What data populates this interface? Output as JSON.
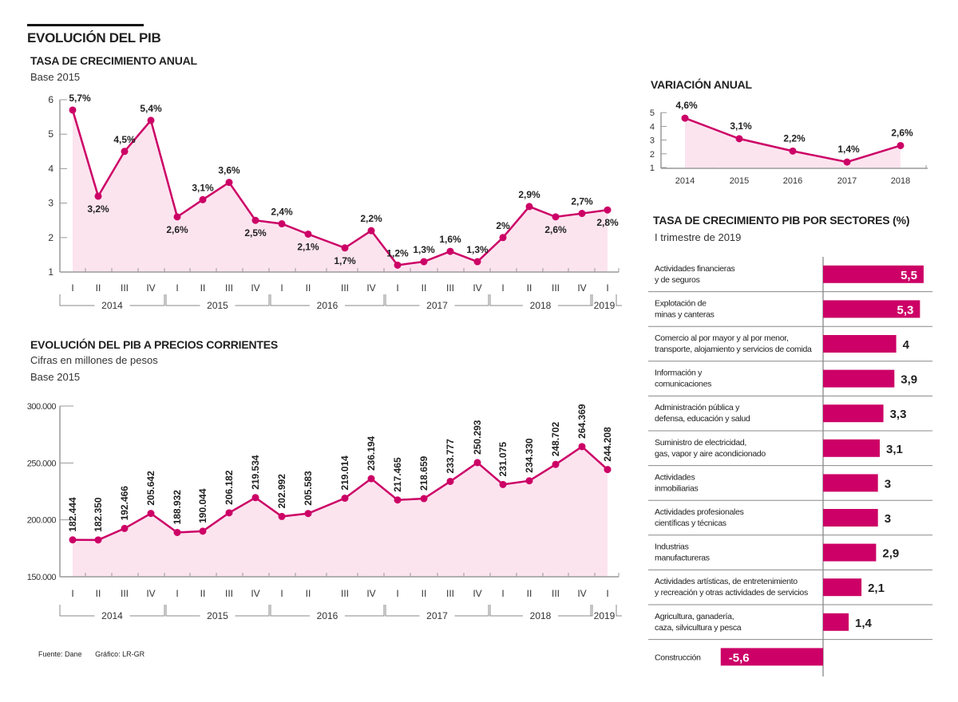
{
  "header": {
    "title": "EVOLUCIÓN DEL PIB"
  },
  "footer": {
    "source": "Fuente: Dane",
    "credit": "Gráfico: LR-GR"
  },
  "colors": {
    "accent": "#cc0066",
    "fill": "#fce4ef",
    "axis": "#888888",
    "text": "#222222"
  },
  "chart_data": [
    {
      "id": "growth",
      "type": "area",
      "title": "TASA DE CRECIMIENTO ANUAL",
      "subtitle": "Base 2015",
      "ylim": [
        1,
        6
      ],
      "yticks": [
        "1",
        "2",
        "3",
        "4",
        "5",
        "6"
      ],
      "categories": [
        "I",
        "II",
        "III",
        "IV",
        "I",
        "II",
        "III",
        "IV",
        "I",
        "II",
        "III",
        "IV",
        "I",
        "II",
        "III",
        "IV",
        "I",
        "II",
        "III",
        "IV",
        "I"
      ],
      "years": [
        {
          "label": "2014",
          "count": 4
        },
        {
          "label": "2015",
          "count": 4
        },
        {
          "label": "2016",
          "count": 4
        },
        {
          "label": "2017",
          "count": 4
        },
        {
          "label": "2018",
          "count": 4
        },
        {
          "label": "2019",
          "count": 1
        }
      ],
      "values": [
        5.7,
        3.2,
        4.5,
        5.4,
        2.6,
        3.1,
        3.6,
        2.5,
        2.4,
        2.1,
        1.7,
        2.2,
        1.2,
        1.3,
        1.6,
        1.3,
        2.0,
        2.9,
        2.6,
        2.7,
        2.8
      ],
      "labels": [
        "5,7%",
        "3,2%",
        "4,5%",
        "5,4%",
        "2,6%",
        "3,1%",
        "3,6%",
        "2,5%",
        "2,4%",
        "2,1%",
        "1,7%",
        "2,2%",
        "1,2%",
        "1,3%",
        "1,6%",
        "1,3%",
        "2%",
        "2,9%",
        "2,6%",
        "2,7%",
        "2,8%"
      ],
      "label_pos": [
        "above",
        "below",
        "above",
        "above",
        "below",
        "above",
        "above",
        "below",
        "above",
        "below",
        "below",
        "above",
        "above",
        "above",
        "above",
        "above",
        "above",
        "above",
        "below",
        "above",
        "below"
      ]
    },
    {
      "id": "annual",
      "type": "area",
      "title": "VARIACIÓN ANUAL",
      "ylim": [
        1,
        5
      ],
      "yticks": [
        "1",
        "2",
        "3",
        "4",
        "5"
      ],
      "categories": [
        "2014",
        "2015",
        "2016",
        "2017",
        "2018"
      ],
      "values": [
        4.6,
        3.1,
        2.2,
        1.4,
        2.6
      ],
      "labels": [
        "4,6%",
        "3,1%",
        "2,2%",
        "1,4%",
        "2,6%"
      ]
    },
    {
      "id": "nominal",
      "type": "area",
      "title": "EVOLUCIÓN DEL PIB A PRECIOS CORRIENTES",
      "subtitle": "Cifras en millones de pesos",
      "subtitle2": "Base 2015",
      "ylim": [
        150000,
        300000
      ],
      "yticks": [
        "150.000",
        "200.000",
        "250.000",
        "300.000"
      ],
      "categories": [
        "I",
        "II",
        "III",
        "IV",
        "I",
        "II",
        "III",
        "IV",
        "I",
        "II",
        "III",
        "IV",
        "I",
        "II",
        "III",
        "IV",
        "I",
        "II",
        "III",
        "IV",
        "I"
      ],
      "years": [
        {
          "label": "2014",
          "count": 4
        },
        {
          "label": "2015",
          "count": 4
        },
        {
          "label": "2016",
          "count": 4
        },
        {
          "label": "2017",
          "count": 4
        },
        {
          "label": "2018",
          "count": 4
        },
        {
          "label": "2019",
          "count": 1
        }
      ],
      "values": [
        182444,
        182350,
        192466,
        205642,
        188932,
        190044,
        206182,
        219534,
        202992,
        205583,
        219014,
        236194,
        217465,
        218659,
        233777,
        250293,
        231075,
        234330,
        248702,
        264369,
        244208
      ],
      "labels": [
        "182.444",
        "182.350",
        "192.466",
        "205.642",
        "188.932",
        "190.044",
        "206.182",
        "219.534",
        "202.992",
        "205.583",
        "219.014",
        "236.194",
        "217.465",
        "218.659",
        "233.777",
        "250.293",
        "231.075",
        "234.330",
        "248.702",
        "264.369",
        "244.208"
      ]
    },
    {
      "id": "sectors",
      "type": "bar",
      "title": "TASA DE CRECIMIENTO PIB POR SECTORES (%)",
      "subtitle": "I trimestre de 2019",
      "xlim": [
        -5.6,
        5.5
      ],
      "categories": [
        [
          "Actividades financieras",
          "y de seguros"
        ],
        [
          "Explotación de",
          "minas y canteras"
        ],
        [
          "Comercio al por mayor y al por menor,",
          "transporte, alojamiento y servicios de comida"
        ],
        [
          "Información y",
          "comunicaciones"
        ],
        [
          "Administración pública y",
          "defensa, educación y salud"
        ],
        [
          "Suministro de electricidad,",
          "gas, vapor y aire acondicionado"
        ],
        [
          "Actividades",
          "inmobiliarias"
        ],
        [
          "Actividades profesionales",
          "científicas y técnicas"
        ],
        [
          "Industrias",
          "manufactureras"
        ],
        [
          "Actividades artísticas, de entretenimiento",
          "y recreación y otras actividades de servicios"
        ],
        [
          "Agricultura, ganadería,",
          "caza, silvicultura y pesca"
        ],
        [
          "Construcción"
        ]
      ],
      "values": [
        5.5,
        5.3,
        4,
        3.9,
        3.3,
        3.1,
        3,
        3,
        2.9,
        2.1,
        1.4,
        -5.6
      ],
      "labels": [
        "5,5",
        "5,3",
        "4",
        "3,9",
        "3,3",
        "3,1",
        "3",
        "3",
        "2,9",
        "2,1",
        "1,4",
        "-5,6"
      ]
    }
  ]
}
